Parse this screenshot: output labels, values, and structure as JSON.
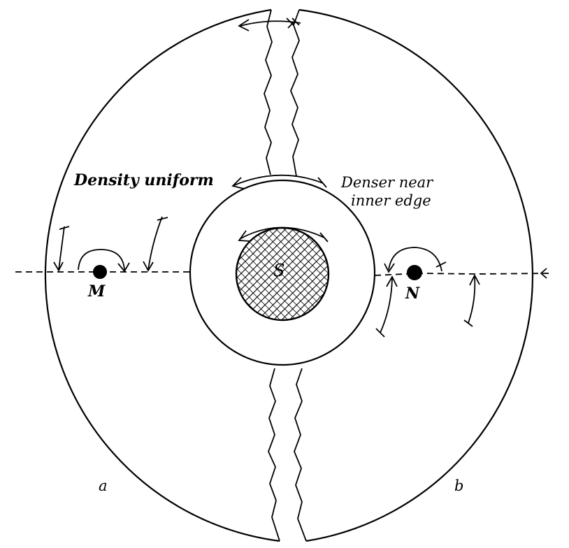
{
  "labels": {
    "left_region": "Density uniform",
    "right_region_line1": "Denser near",
    "right_region_line2": "inner edge",
    "sun": "S",
    "left_body": "M",
    "right_body": "N",
    "left_half": "a",
    "right_half": "b"
  },
  "colors": {
    "ink": "#000000",
    "paper": "#ffffff"
  }
}
